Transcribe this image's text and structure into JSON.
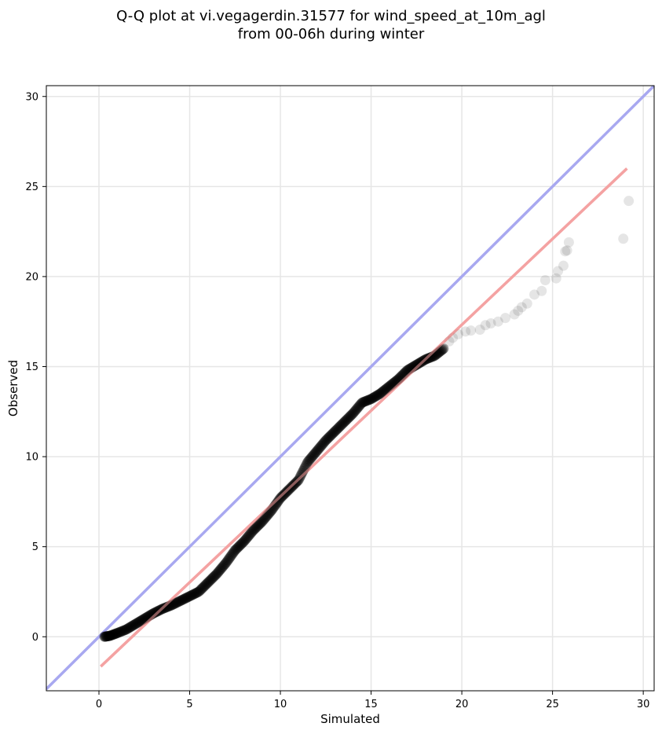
{
  "chart_data": {
    "type": "scatter",
    "title_line1": "Q-Q plot at vi.vegagerdin.31577 for wind_speed_at_10m_agl",
    "title_line2": "from 00-06h during winter",
    "xlabel": "Simulated",
    "ylabel": "Observed",
    "xlim": [
      -2.9,
      30.6
    ],
    "ylim": [
      -3.0,
      30.6
    ],
    "xticks": [
      0,
      5,
      10,
      15,
      20,
      25,
      30
    ],
    "yticks": [
      0,
      5,
      10,
      15,
      20,
      25,
      30
    ],
    "grid": true,
    "series": [
      {
        "kind": "reference_line",
        "color": "#a8a8f0",
        "points": [
          [
            -2.9,
            -2.9
          ],
          [
            30.6,
            30.6
          ]
        ]
      },
      {
        "kind": "fit_line",
        "color": "#f4a3a3",
        "points": [
          [
            0.1,
            -1.65
          ],
          [
            29.1,
            26.0
          ]
        ]
      },
      {
        "kind": "quantile_points",
        "color": "#000000",
        "dense_anchors": [
          [
            0.3,
            0.0
          ],
          [
            0.6,
            0.05
          ],
          [
            1.0,
            0.2
          ],
          [
            1.5,
            0.4
          ],
          [
            2.0,
            0.7
          ],
          [
            2.5,
            1.0
          ],
          [
            3.0,
            1.3
          ],
          [
            3.5,
            1.55
          ],
          [
            4.0,
            1.75
          ],
          [
            4.5,
            2.0
          ],
          [
            5.0,
            2.25
          ],
          [
            5.5,
            2.5
          ],
          [
            6.0,
            3.0
          ],
          [
            6.5,
            3.5
          ],
          [
            7.0,
            4.1
          ],
          [
            7.5,
            4.8
          ],
          [
            8.0,
            5.3
          ],
          [
            8.5,
            5.9
          ],
          [
            9.0,
            6.4
          ],
          [
            9.5,
            7.0
          ],
          [
            10.0,
            7.7
          ],
          [
            10.5,
            8.2
          ],
          [
            11.0,
            8.7
          ],
          [
            11.5,
            9.7
          ],
          [
            12.0,
            10.3
          ],
          [
            12.5,
            10.9
          ],
          [
            13.0,
            11.4
          ],
          [
            13.5,
            11.9
          ],
          [
            14.0,
            12.4
          ],
          [
            14.5,
            13.0
          ],
          [
            15.0,
            13.2
          ],
          [
            15.5,
            13.5
          ],
          [
            16.0,
            13.9
          ],
          [
            16.5,
            14.3
          ],
          [
            17.0,
            14.8
          ],
          [
            17.5,
            15.1
          ],
          [
            18.0,
            15.4
          ],
          [
            18.5,
            15.6
          ],
          [
            19.0,
            16.0
          ]
        ],
        "tail": [
          [
            19.3,
            16.4
          ],
          [
            19.5,
            16.6
          ],
          [
            19.8,
            16.8
          ],
          [
            20.2,
            16.95
          ],
          [
            20.5,
            17.0
          ],
          [
            21.0,
            17.05
          ],
          [
            21.3,
            17.3
          ],
          [
            21.6,
            17.4
          ],
          [
            22.0,
            17.5
          ],
          [
            22.4,
            17.7
          ],
          [
            22.9,
            17.9
          ],
          [
            23.1,
            18.1
          ],
          [
            23.3,
            18.3
          ],
          [
            23.6,
            18.5
          ],
          [
            24.0,
            19.0
          ],
          [
            24.4,
            19.2
          ],
          [
            24.6,
            19.8
          ],
          [
            25.2,
            19.9
          ],
          [
            25.3,
            20.3
          ],
          [
            25.6,
            20.6
          ],
          [
            25.7,
            21.4
          ],
          [
            25.8,
            21.45
          ],
          [
            25.9,
            21.9
          ],
          [
            28.9,
            22.1
          ],
          [
            29.2,
            24.2
          ]
        ]
      }
    ]
  }
}
